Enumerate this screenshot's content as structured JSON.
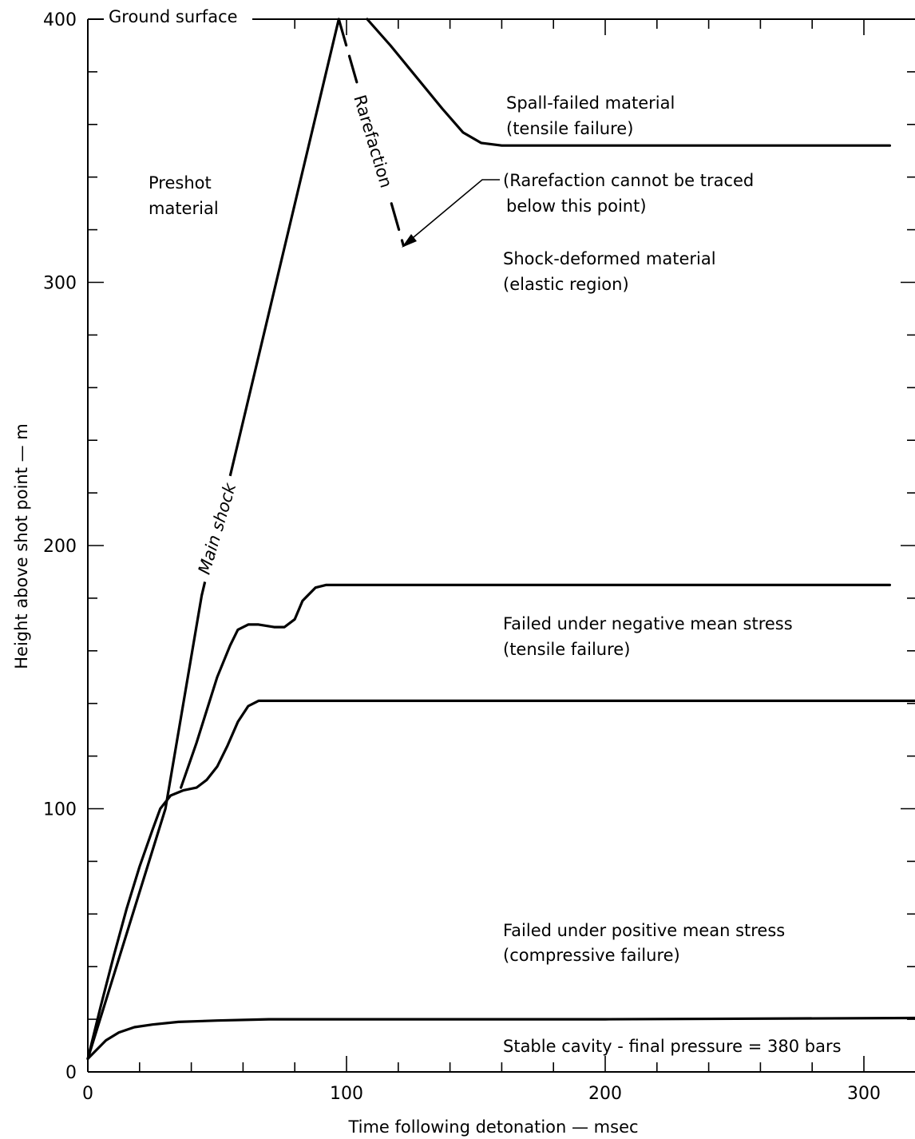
{
  "chart_data": {
    "type": "line",
    "title": "",
    "xlabel": "Time following detonation — msec",
    "ylabel": "Height above shot point — m",
    "xlim": [
      0,
      320
    ],
    "ylim": [
      0,
      400
    ],
    "x_major_ticks": [
      0,
      100,
      200,
      300
    ],
    "y_major_ticks": [
      0,
      100,
      200,
      300,
      400
    ],
    "x_minor_step": 20,
    "y_minor_step": 20,
    "grid": false,
    "legend": "none",
    "series": [
      {
        "key": "main_shock",
        "name": "Main shock",
        "style": "solid",
        "points": [
          [
            0,
            5
          ],
          [
            30,
            100
          ],
          [
            44,
            181
          ],
          [
            97,
            400
          ]
        ]
      },
      {
        "key": "rarefaction",
        "name": "Rarefaction",
        "style": "dashed",
        "points": [
          [
            97,
            400
          ],
          [
            122,
            314
          ]
        ]
      },
      {
        "key": "spall_boundary",
        "name": "",
        "style": "solid",
        "points": [
          [
            108,
            400
          ],
          [
            117,
            390
          ],
          [
            127,
            378
          ],
          [
            137,
            366
          ],
          [
            145,
            357
          ],
          [
            152,
            353
          ],
          [
            160,
            352
          ],
          [
            200,
            352
          ],
          [
            250,
            352
          ],
          [
            310,
            352
          ]
        ]
      },
      {
        "key": "negative_stress_boundary",
        "name": "",
        "style": "solid",
        "points": [
          [
            36,
            108
          ],
          [
            42,
            125
          ],
          [
            50,
            150
          ],
          [
            55,
            162
          ],
          [
            58,
            168
          ],
          [
            62,
            170
          ],
          [
            66,
            170
          ],
          [
            72,
            169
          ],
          [
            76,
            169
          ],
          [
            80,
            172
          ],
          [
            83,
            179
          ],
          [
            88,
            184
          ],
          [
            92,
            185
          ],
          [
            150,
            185
          ],
          [
            310,
            185
          ]
        ]
      },
      {
        "key": "positive_stress_boundary",
        "name": "",
        "style": "solid",
        "points": [
          [
            0,
            5
          ],
          [
            5,
            25
          ],
          [
            10,
            44
          ],
          [
            15,
            62
          ],
          [
            20,
            78
          ],
          [
            25,
            92
          ],
          [
            28,
            100
          ],
          [
            32,
            105
          ],
          [
            37,
            107
          ],
          [
            42,
            108
          ],
          [
            46,
            111
          ],
          [
            50,
            116
          ],
          [
            54,
            124
          ],
          [
            58,
            133
          ],
          [
            62,
            139
          ],
          [
            66,
            141
          ],
          [
            70,
            141
          ],
          [
            100,
            141
          ],
          [
            200,
            141
          ],
          [
            320,
            141
          ]
        ]
      },
      {
        "key": "cavity_boundary",
        "name": "",
        "style": "solid",
        "points": [
          [
            0,
            5
          ],
          [
            3,
            8
          ],
          [
            7,
            12
          ],
          [
            12,
            15
          ],
          [
            18,
            17
          ],
          [
            25,
            18
          ],
          [
            35,
            19
          ],
          [
            50,
            19.5
          ],
          [
            70,
            20
          ],
          [
            100,
            20
          ],
          [
            200,
            20
          ],
          [
            320,
            20.5
          ]
        ]
      }
    ],
    "annotations": {
      "ground_surface": "Ground surface",
      "main_shock": "Main shock",
      "rarefaction": "Rarefaction",
      "spall_line1": "Spall-failed material",
      "spall_line2": "(tensile failure)",
      "preshot_line1": "Preshot",
      "preshot_line2": "material",
      "trace_line1": "(Rarefaction cannot be traced",
      "trace_line2": "below this point)",
      "shock_def_line1": "Shock-deformed material",
      "shock_def_line2": "(elastic region)",
      "neg_line1": "Failed under negative mean stress",
      "neg_line2": "(tensile failure)",
      "pos_line1": "Failed under positive mean stress",
      "pos_line2": "(compressive failure)",
      "cavity": "Stable cavity - final pressure = 380 bars"
    }
  }
}
